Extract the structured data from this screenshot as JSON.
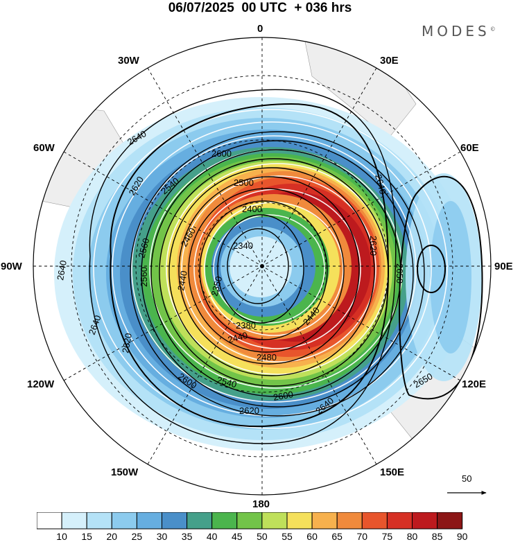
{
  "title": "06/07/2025  00 UTC  + 036 hrs",
  "brand": "MODES",
  "brand_mark": "©",
  "longitude_labels": {
    "lon_0": "0",
    "lon_30e": "30E",
    "lon_60e": "60E",
    "lon_90e": "90E",
    "lon_120e": "120E",
    "lon_150e": "150E",
    "lon_180": "180",
    "lon_150w": "150W",
    "lon_120w": "120W",
    "lon_90w": "90W",
    "lon_60w": "60W",
    "lon_30w": "30W"
  },
  "vector_reference": {
    "label": "50",
    "icon": "arrow-right-icon"
  },
  "colorbar": {
    "ticks": [
      "10",
      "15",
      "20",
      "25",
      "30",
      "35",
      "40",
      "45",
      "50",
      "55",
      "60",
      "65",
      "70",
      "75",
      "80",
      "85",
      "90"
    ],
    "colors": [
      "#ffffff",
      "#d5f0fb",
      "#b4e2f7",
      "#8ccbee",
      "#66aee0",
      "#4a8fc9",
      "#45a08a",
      "#4bb54d",
      "#72c449",
      "#bfe05a",
      "#f5e05b",
      "#f7b14d",
      "#f08a3c",
      "#e8552c",
      "#d63024",
      "#bd1a1e",
      "#8c1616"
    ]
  },
  "contour_labels": {
    "c2340": "2340",
    "c2350": "2350",
    "c2380": "2380",
    "c2400": "2400",
    "c2440a": "2440",
    "c2440b": "2440",
    "c2440c": "2440",
    "c2480": "2480",
    "c2460": "2460",
    "c2500": "2500",
    "c2540a": "2540",
    "c2540b": "2540",
    "c2560a": "2560",
    "c2560b": "2560",
    "c2600a": "2600",
    "c2600b": "2600",
    "c2600c": "2600",
    "c2620a": "2620",
    "c2620b": "2620",
    "c2620c": "2620",
    "c2620d": "2620",
    "c2640a": "2640",
    "c2640b": "2640",
    "c2640c": "2640",
    "c2640d": "2640",
    "c2640e": "2640",
    "c2650a": "2650",
    "c2650b": "2650"
  }
}
